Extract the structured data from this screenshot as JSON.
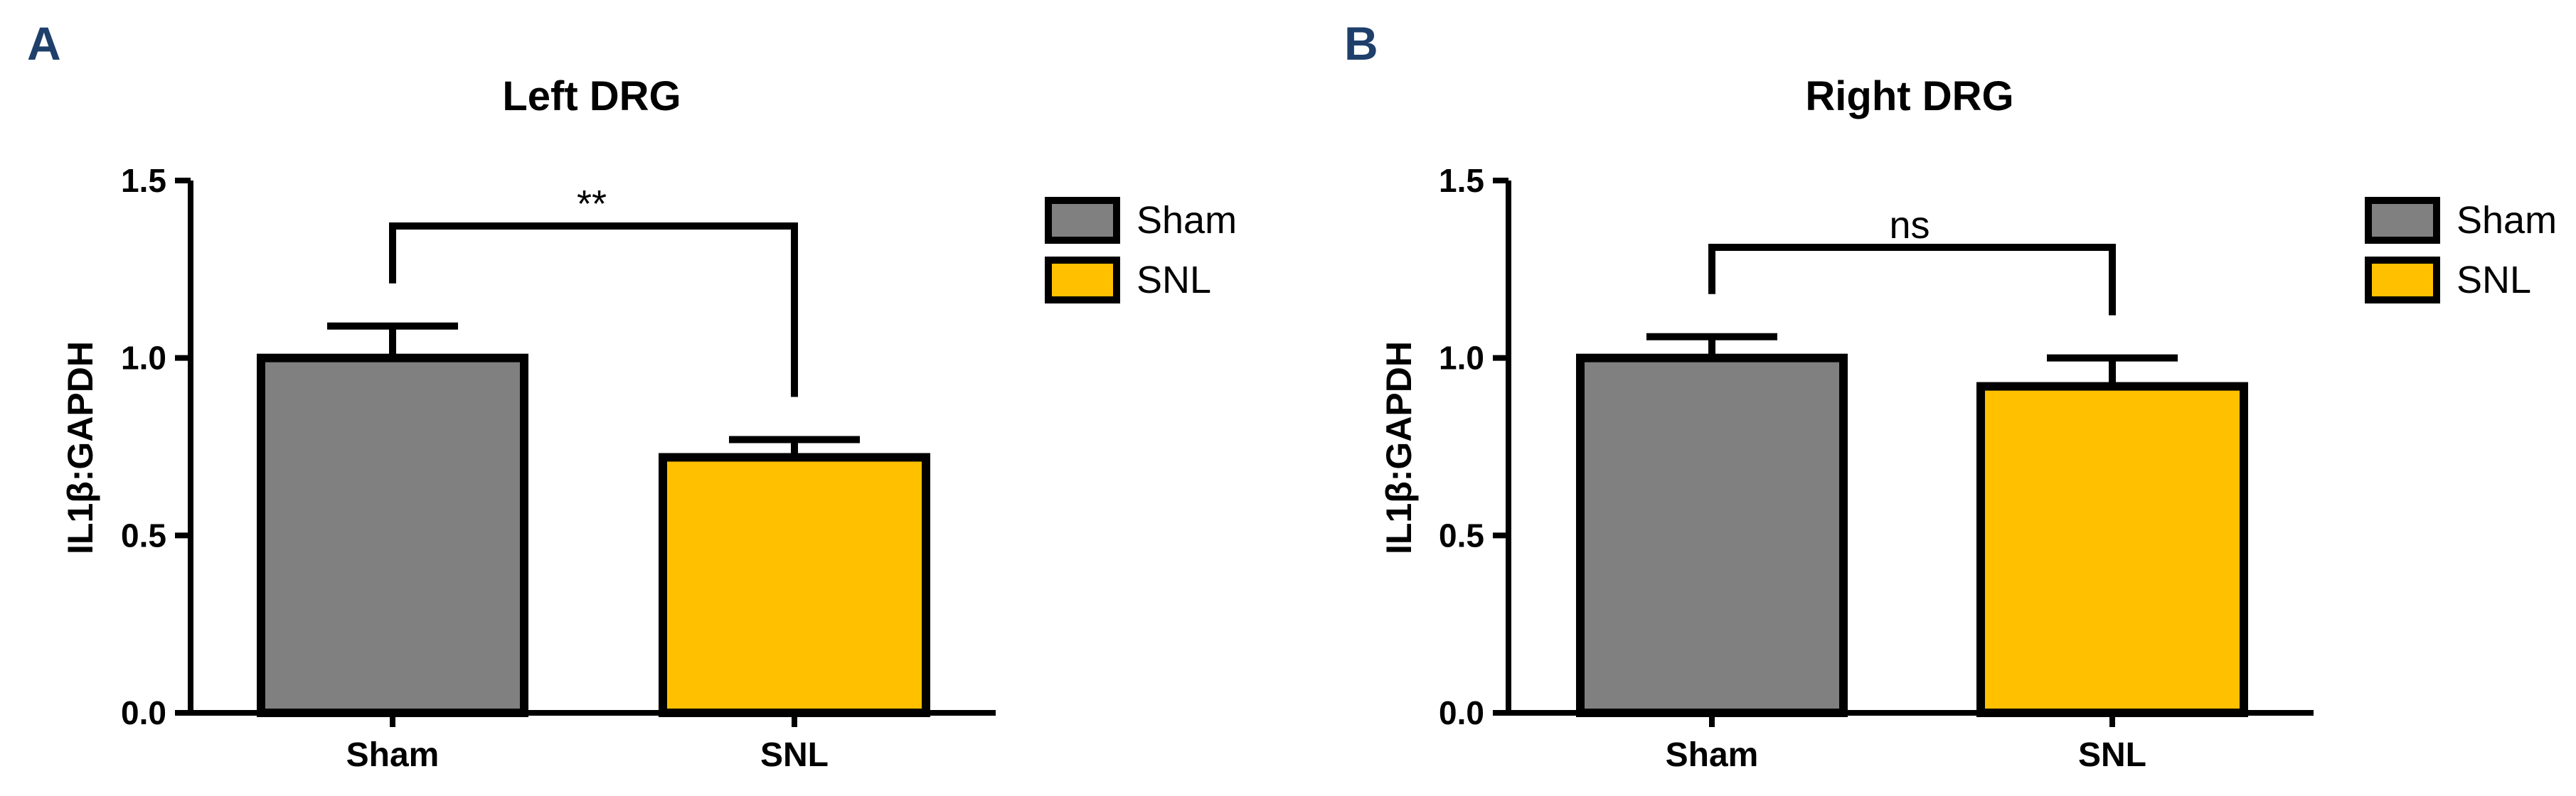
{
  "colors": {
    "sham": "#808080",
    "snl": "#ffc000",
    "stroke": "#000000",
    "panel_letter": "#1f3f6b"
  },
  "chart_data": [
    {
      "panel": "A",
      "type": "bar",
      "title": "Left DRG",
      "xlabel": "",
      "ylabel": "IL1β:GAPDH",
      "ylim": [
        0,
        1.5
      ],
      "yticks": [
        "0.0",
        "0.5",
        "1.0",
        "1.5"
      ],
      "categories": [
        "Sham",
        "SNL"
      ],
      "values": [
        1.0,
        0.72
      ],
      "errors": [
        0.09,
        0.05
      ],
      "significance": "**",
      "legend": [
        "Sham",
        "SNL"
      ],
      "legend_position": "top-right"
    },
    {
      "panel": "B",
      "type": "bar",
      "title": "Right DRG",
      "xlabel": "",
      "ylabel": "IL1β:GAPDH",
      "ylim": [
        0,
        1.5
      ],
      "yticks": [
        "0.0",
        "0.5",
        "1.0",
        "1.5"
      ],
      "categories": [
        "Sham",
        "SNL"
      ],
      "values": [
        1.0,
        0.92
      ],
      "errors": [
        0.06,
        0.08
      ],
      "significance": "ns",
      "legend": [
        "Sham",
        "SNL"
      ],
      "legend_position": "top-right"
    }
  ]
}
